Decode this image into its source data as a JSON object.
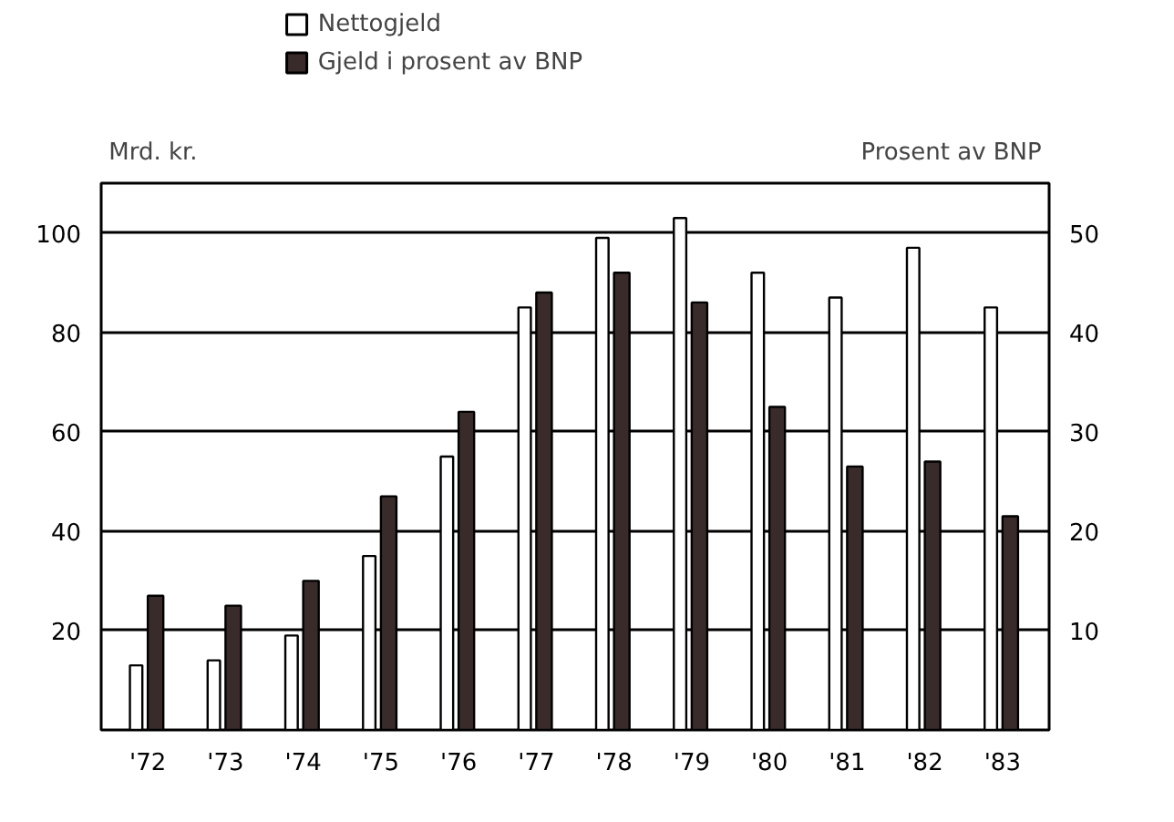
{
  "chart_data": {
    "type": "bar",
    "categories": [
      "'72",
      "'73",
      "'74",
      "'75",
      "'76",
      "'77",
      "'78",
      "'79",
      "'80",
      "'81",
      "'82",
      "'83"
    ],
    "series": [
      {
        "name": "Nettogjeld",
        "color": "#ffffff",
        "values": [
          13,
          14,
          19,
          35,
          55,
          85,
          99,
          103,
          92,
          87,
          97,
          85
        ]
      },
      {
        "name": "Gjeld i prosent av BNP",
        "color": "#3a2b2b",
        "axis": "y2",
        "values": [
          13.5,
          12.5,
          15,
          23.5,
          32,
          44,
          46,
          43,
          32.5,
          26.5,
          27,
          21.5
        ]
      }
    ],
    "ylabel": "Mrd. kr.",
    "y2label": "Prosent av BNP",
    "ylim": [
      0,
      110
    ],
    "yticks": [
      20,
      40,
      60,
      80,
      100
    ],
    "y2lim": [
      0,
      55
    ],
    "y2ticks": [
      10,
      20,
      30,
      40,
      50
    ],
    "grid": "y",
    "legend": "top left"
  }
}
